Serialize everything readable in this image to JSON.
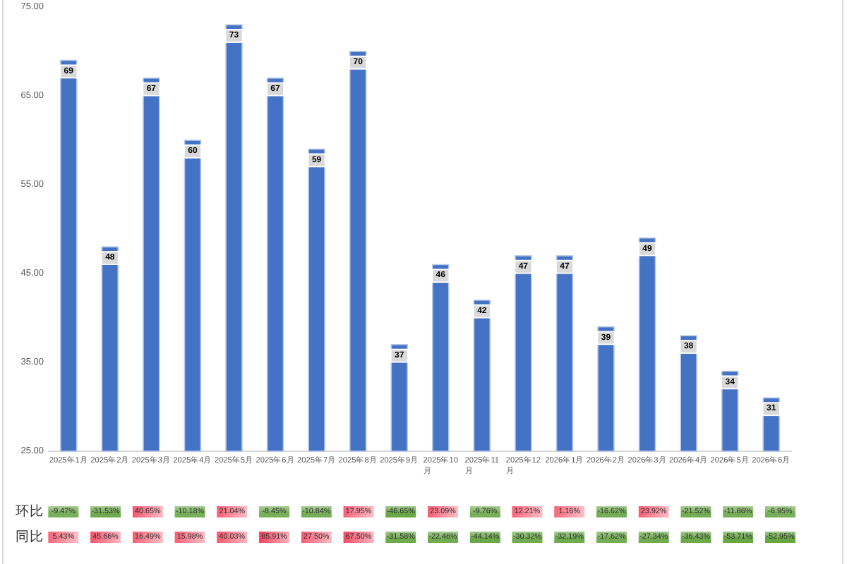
{
  "chart_data": [
    {
      "type": "bar",
      "categories": [
        "2025年1月",
        "2025年2月",
        "2025年3月",
        "2025年4月",
        "2025年5月",
        "2025年6月",
        "2025年7月",
        "2025年8月",
        "2025年9月",
        "2025年10月",
        "2025年11月",
        "2025年12月",
        "2026年1月",
        "2026年2月",
        "2026年3月",
        "2026年4月",
        "2026年5月",
        "2026年6月"
      ],
      "series": [
        {
          "color": "#4472c4",
          "values": [
            69,
            48,
            67,
            60,
            73,
            67,
            59,
            70,
            37,
            46,
            42,
            47,
            47,
            39,
            49,
            38,
            34,
            31
          ]
        }
      ],
      "ylim": [
        25,
        75
      ],
      "yticks": [
        {
          "value": 25,
          "label": "25.00"
        },
        {
          "value": 35,
          "label": "35.00"
        },
        {
          "value": 45,
          "label": "45.00"
        },
        {
          "value": 55,
          "label": "55.00"
        },
        {
          "value": 65,
          "label": "65.00"
        },
        {
          "value": 75,
          "label": "75.00"
        }
      ],
      "data_labels": true
    },
    {
      "type": "heatmap",
      "categories": [
        null,
        null,
        null,
        null,
        null,
        null,
        null,
        null,
        null,
        null,
        null,
        null,
        null,
        null,
        null,
        null,
        null,
        null
      ],
      "y_categories": [
        "环比",
        "同比"
      ],
      "cells": [
        [
          -9.47,
          -31.53,
          40.65,
          -10.18,
          21.04,
          -8.45,
          -10.84,
          17.95,
          -46.65,
          23.09,
          -9.76,
          12.21,
          1.16,
          -16.62,
          23.92,
          -21.52,
          -11.86,
          -6.95
        ],
        [
          5.43,
          45.66,
          16.49,
          15.98,
          40.03,
          85.91,
          27.5,
          67.5,
          -31.58,
          -22.46,
          -44.14,
          -30.32,
          -32.19,
          -17.62,
          -27.34,
          -36.43,
          -53.71,
          -52.95
        ]
      ],
      "cell_labels": [
        [
          "-9.47%",
          "-31.53%",
          "40.65%",
          "-10.18%",
          "21.04%",
          "-8.45%",
          "-10.84%",
          "17.95%",
          "-46.65%",
          "23.09%",
          "-9.76%",
          "12.21%",
          "1.16%",
          "-16.62%",
          "23.92%",
          "-21.52%",
          "-11.86%",
          "-6.95%"
        ],
        [
          "5.43%",
          "45.66%",
          "16.49%",
          "15.98%",
          "40.03%",
          "85.91%",
          "27.50%",
          "67.50%",
          "-31.58%",
          "-22.46%",
          "-44.14%",
          "-30.32%",
          "-32.19%",
          "-17.62%",
          "-27.34%",
          "-36.43%",
          "-53.71%",
          "-52.95%"
        ]
      ]
    }
  ]
}
